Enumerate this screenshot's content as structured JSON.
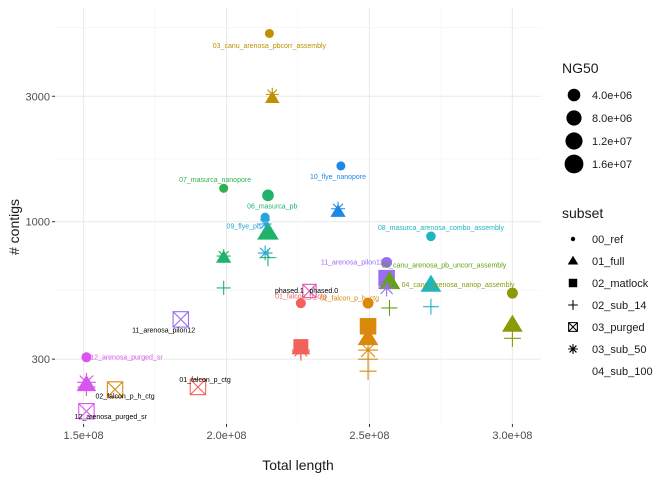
{
  "chart_data": {
    "type": "scatter",
    "title": "",
    "xlabel": "Total length",
    "ylabel": "# contigs",
    "x_scale": "linear",
    "y_scale": "log",
    "xlim": [
      140000000,
      310000000
    ],
    "ylim": [
      170,
      6500
    ],
    "x_ticks": [
      {
        "value": 150000000,
        "label": "1.5e+08"
      },
      {
        "value": 200000000,
        "label": "2.0e+08"
      },
      {
        "value": 250000000,
        "label": "2.5e+08"
      },
      {
        "value": 300000000,
        "label": "3.0e+08"
      }
    ],
    "y_ticks": [
      {
        "value": 300,
        "label": "300"
      },
      {
        "value": 1000,
        "label": "1000"
      },
      {
        "value": 3000,
        "label": "3000"
      }
    ],
    "grid": true,
    "legend_position": "right",
    "size_legend": {
      "title": "NG50",
      "entries": [
        {
          "label": "4.0e+06",
          "value": 4000000
        },
        {
          "label": "8.0e+06",
          "value": 8000000
        },
        {
          "label": "1.2e+07",
          "value": 12000000
        },
        {
          "label": "1.6e+07",
          "value": 16000000
        }
      ]
    },
    "shape_legend": {
      "title": "subset",
      "entries": [
        {
          "label": "00_ref",
          "shape": "small-dot"
        },
        {
          "label": "01_full",
          "shape": "triangle"
        },
        {
          "label": "02_matlock",
          "shape": "square"
        },
        {
          "label": "02_sub_14",
          "shape": "plus"
        },
        {
          "label": "03_purged",
          "shape": "boxed-x"
        },
        {
          "label": "03_sub_50",
          "shape": "asterisk"
        },
        {
          "label": "04_sub_100",
          "shape": "none"
        }
      ]
    },
    "colors": {
      "canu_pbcorr": "#C09000",
      "masurca_nanopore": "#2DB24F",
      "flye_nanopore": "#1E88E5",
      "masurca_pb": "#1FB36A",
      "flye_pb": "#27A4DE",
      "masurca_combo": "#1EB5C0",
      "pilon12": "#9A6DF2",
      "canu_uncorr": "#62A30E",
      "falcon_p_h": "#D98A0C",
      "falcon_p": "#F2625A",
      "nanop": "#8C9A0A",
      "phased": "#E255B5",
      "purged_sr": "#D855EF"
    },
    "points": [
      {
        "x": 215000000,
        "y": 5200,
        "shape": "small-dot",
        "size": 4000000,
        "color": "canu_pbcorr"
      },
      {
        "x": 216000000,
        "y": 2950,
        "shape": "triangle",
        "size": 4000000,
        "color": "canu_pbcorr"
      },
      {
        "x": 216000000,
        "y": 3050,
        "shape": "asterisk",
        "size": 4000000,
        "color": "canu_pbcorr"
      },
      {
        "x": 199000000,
        "y": 1340,
        "shape": "small-dot",
        "size": 4000000,
        "color": "masurca_nanopore"
      },
      {
        "x": 240000000,
        "y": 1630,
        "shape": "small-dot",
        "size": 4000000,
        "color": "flye_nanopore"
      },
      {
        "x": 239000000,
        "y": 1120,
        "shape": "asterisk",
        "size": 5000000,
        "color": "flye_nanopore"
      },
      {
        "x": 239000000,
        "y": 1090,
        "shape": "triangle",
        "size": 5000000,
        "color": "flye_nanopore"
      },
      {
        "x": 214500000,
        "y": 1260,
        "shape": "small-dot",
        "size": 10000000,
        "color": "masurca_pb"
      },
      {
        "x": 214500000,
        "y": 910,
        "shape": "triangle",
        "size": 16000000,
        "color": "masurca_pb"
      },
      {
        "x": 213500000,
        "y": 1040,
        "shape": "small-dot",
        "size": 4000000,
        "color": "flye_pb"
      },
      {
        "x": 213500000,
        "y": 980,
        "shape": "asterisk",
        "size": 4000000,
        "color": "flye_pb"
      },
      {
        "x": 213500000,
        "y": 760,
        "shape": "asterisk",
        "size": 6000000,
        "color": "flye_pb"
      },
      {
        "x": 214500000,
        "y": 730,
        "shape": "plus",
        "size": 10000000,
        "color": "masurca_pb"
      },
      {
        "x": 199000000,
        "y": 740,
        "shape": "asterisk",
        "size": 5000000,
        "color": "masurca_pb"
      },
      {
        "x": 199000000,
        "y": 730,
        "shape": "triangle",
        "size": 5000000,
        "color": "masurca_pb"
      },
      {
        "x": 199000000,
        "y": 560,
        "shape": "plus",
        "size": 5000000,
        "color": "masurca_pb"
      },
      {
        "x": 271500000,
        "y": 880,
        "shape": "small-dot",
        "size": 5000000,
        "color": "masurca_combo"
      },
      {
        "x": 271500000,
        "y": 575,
        "shape": "triangle",
        "size": 14000000,
        "color": "masurca_combo"
      },
      {
        "x": 271500000,
        "y": 475,
        "shape": "plus",
        "size": 8000000,
        "color": "masurca_combo"
      },
      {
        "x": 256000000,
        "y": 700,
        "shape": "small-dot",
        "size": 8000000,
        "color": "pilon12"
      },
      {
        "x": 256000000,
        "y": 610,
        "shape": "square",
        "size": 14000000,
        "color": "pilon12"
      },
      {
        "x": 257000000,
        "y": 590,
        "shape": "triangle",
        "size": 16000000,
        "color": "canu_uncorr"
      },
      {
        "x": 257000000,
        "y": 470,
        "shape": "plus",
        "size": 8000000,
        "color": "canu_uncorr"
      },
      {
        "x": 256000000,
        "y": 560,
        "shape": "asterisk",
        "size": 10000000,
        "color": "pilon12"
      },
      {
        "x": 300000000,
        "y": 535,
        "shape": "small-dot",
        "size": 8000000,
        "color": "nanop"
      },
      {
        "x": 300000000,
        "y": 405,
        "shape": "triangle",
        "size": 14000000,
        "color": "nanop"
      },
      {
        "x": 300000000,
        "y": 360,
        "shape": "plus",
        "size": 10000000,
        "color": "nanop"
      },
      {
        "x": 249500000,
        "y": 490,
        "shape": "small-dot",
        "size": 8000000,
        "color": "falcon_p_h"
      },
      {
        "x": 249500000,
        "y": 400,
        "shape": "square",
        "size": 14000000,
        "color": "falcon_p_h"
      },
      {
        "x": 249500000,
        "y": 360,
        "shape": "triangle",
        "size": 14000000,
        "color": "falcon_p_h"
      },
      {
        "x": 249500000,
        "y": 325,
        "shape": "asterisk",
        "size": 16000000,
        "color": "falcon_p_h"
      },
      {
        "x": 249500000,
        "y": 300,
        "shape": "plus",
        "size": 16000000,
        "color": "falcon_p_h"
      },
      {
        "x": 249500000,
        "y": 270,
        "shape": "plus",
        "size": 10000000,
        "color": "falcon_p_h"
      },
      {
        "x": 226000000,
        "y": 490,
        "shape": "small-dot",
        "size": 6000000,
        "color": "falcon_p"
      },
      {
        "x": 226000000,
        "y": 335,
        "shape": "square",
        "size": 10000000,
        "color": "falcon_p"
      },
      {
        "x": 226000000,
        "y": 330,
        "shape": "triangle",
        "size": 10000000,
        "color": "falcon_p"
      },
      {
        "x": 226000000,
        "y": 325,
        "shape": "asterisk",
        "size": 12000000,
        "color": "falcon_p"
      },
      {
        "x": 226000000,
        "y": 320,
        "shape": "plus",
        "size": 12000000,
        "color": "falcon_p"
      },
      {
        "x": 229000000,
        "y": 545,
        "shape": "boxed-x",
        "size": 6000000,
        "color": "phased"
      },
      {
        "x": 151000000,
        "y": 305,
        "shape": "small-dot",
        "size": 6000000,
        "color": "purged_sr"
      },
      {
        "x": 151000000,
        "y": 240,
        "shape": "triangle",
        "size": 12000000,
        "color": "purged_sr"
      },
      {
        "x": 151000000,
        "y": 245,
        "shape": "asterisk",
        "size": 14000000,
        "color": "purged_sr"
      },
      {
        "x": 151000000,
        "y": 235,
        "shape": "plus",
        "size": 12000000,
        "color": "purged_sr"
      },
      {
        "x": 151000000,
        "y": 190,
        "shape": "boxed-x",
        "size": 10000000,
        "color": "purged_sr"
      },
      {
        "x": 184000000,
        "y": 425,
        "shape": "boxed-x",
        "size": 10000000,
        "color": "pilon12"
      },
      {
        "x": 161000000,
        "y": 230,
        "shape": "boxed-x",
        "size": 10000000,
        "color": "falcon_p_h"
      },
      {
        "x": 190000000,
        "y": 235,
        "shape": "boxed-x",
        "size": 10000000,
        "color": "falcon_p"
      }
    ],
    "annotations": [
      {
        "text": "03_canu_arenosa_pbcorr_assembly",
        "x": 215000000,
        "y": 4650,
        "color": "canu_pbcorr",
        "anchor": "middle"
      },
      {
        "text": "07_masurca_nanopore",
        "x": 196000000,
        "y": 1440,
        "color": "masurca_nanopore",
        "anchor": "middle"
      },
      {
        "text": "10_flye_nanopore",
        "x": 239000000,
        "y": 1480,
        "color": "flye_nanopore",
        "anchor": "middle"
      },
      {
        "text": "06_masurca_pb",
        "x": 216000000,
        "y": 1140,
        "color": "masurca_pb",
        "anchor": "middle"
      },
      {
        "text": "09_flye_pb",
        "x": 206000000,
        "y": 960,
        "color": "flye_pb",
        "anchor": "middle"
      },
      {
        "text": "08_masurca_arenosa_combo_assembly",
        "x": 275000000,
        "y": 945,
        "color": "masurca_combo",
        "anchor": "middle"
      },
      {
        "text": "11_arenosa_pilon12",
        "x": 244000000,
        "y": 700,
        "color": "pilon12",
        "anchor": "middle"
      },
      {
        "text": "05_canu_arenosa_pb_uncorr_assembly",
        "x": 276000000,
        "y": 680,
        "color": "canu_uncorr",
        "anchor": "middle"
      },
      {
        "text": "04_canu_arenosa_nanop_assembly",
        "x": 281000000,
        "y": 575,
        "color": "nanop",
        "anchor": "middle"
      },
      {
        "text": "phased.1",
        "x": 222000000,
        "y": 545,
        "color": "#000000",
        "anchor": "middle"
      },
      {
        "text": "phased.0",
        "x": 234000000,
        "y": 545,
        "color": "#000000",
        "anchor": "middle"
      },
      {
        "text": "01_falcon_p_ctg",
        "x": 226000000,
        "y": 520,
        "color": "falcon_p",
        "anchor": "middle"
      },
      {
        "text": "02_falcon_p_h_ctg",
        "x": 243000000,
        "y": 510,
        "color": "falcon_p_h",
        "anchor": "middle"
      },
      {
        "text": "11_arenosa_pilon12",
        "x": 178000000,
        "y": 385,
        "color": "#000000",
        "anchor": "middle"
      },
      {
        "text": "12_arenosa_purged_sr",
        "x": 165000000,
        "y": 305,
        "color": "purged_sr",
        "anchor": "middle"
      },
      {
        "text": "01_falcon_p_ctg",
        "x": 192500000,
        "y": 250,
        "color": "#000000",
        "anchor": "middle"
      },
      {
        "text": "02_falcon_p_h_ctg",
        "x": 164500000,
        "y": 216,
        "color": "#000000",
        "anchor": "middle"
      },
      {
        "text": "12_arenosa_purged_sr",
        "x": 159500000,
        "y": 181,
        "color": "#000000",
        "anchor": "middle"
      }
    ]
  }
}
